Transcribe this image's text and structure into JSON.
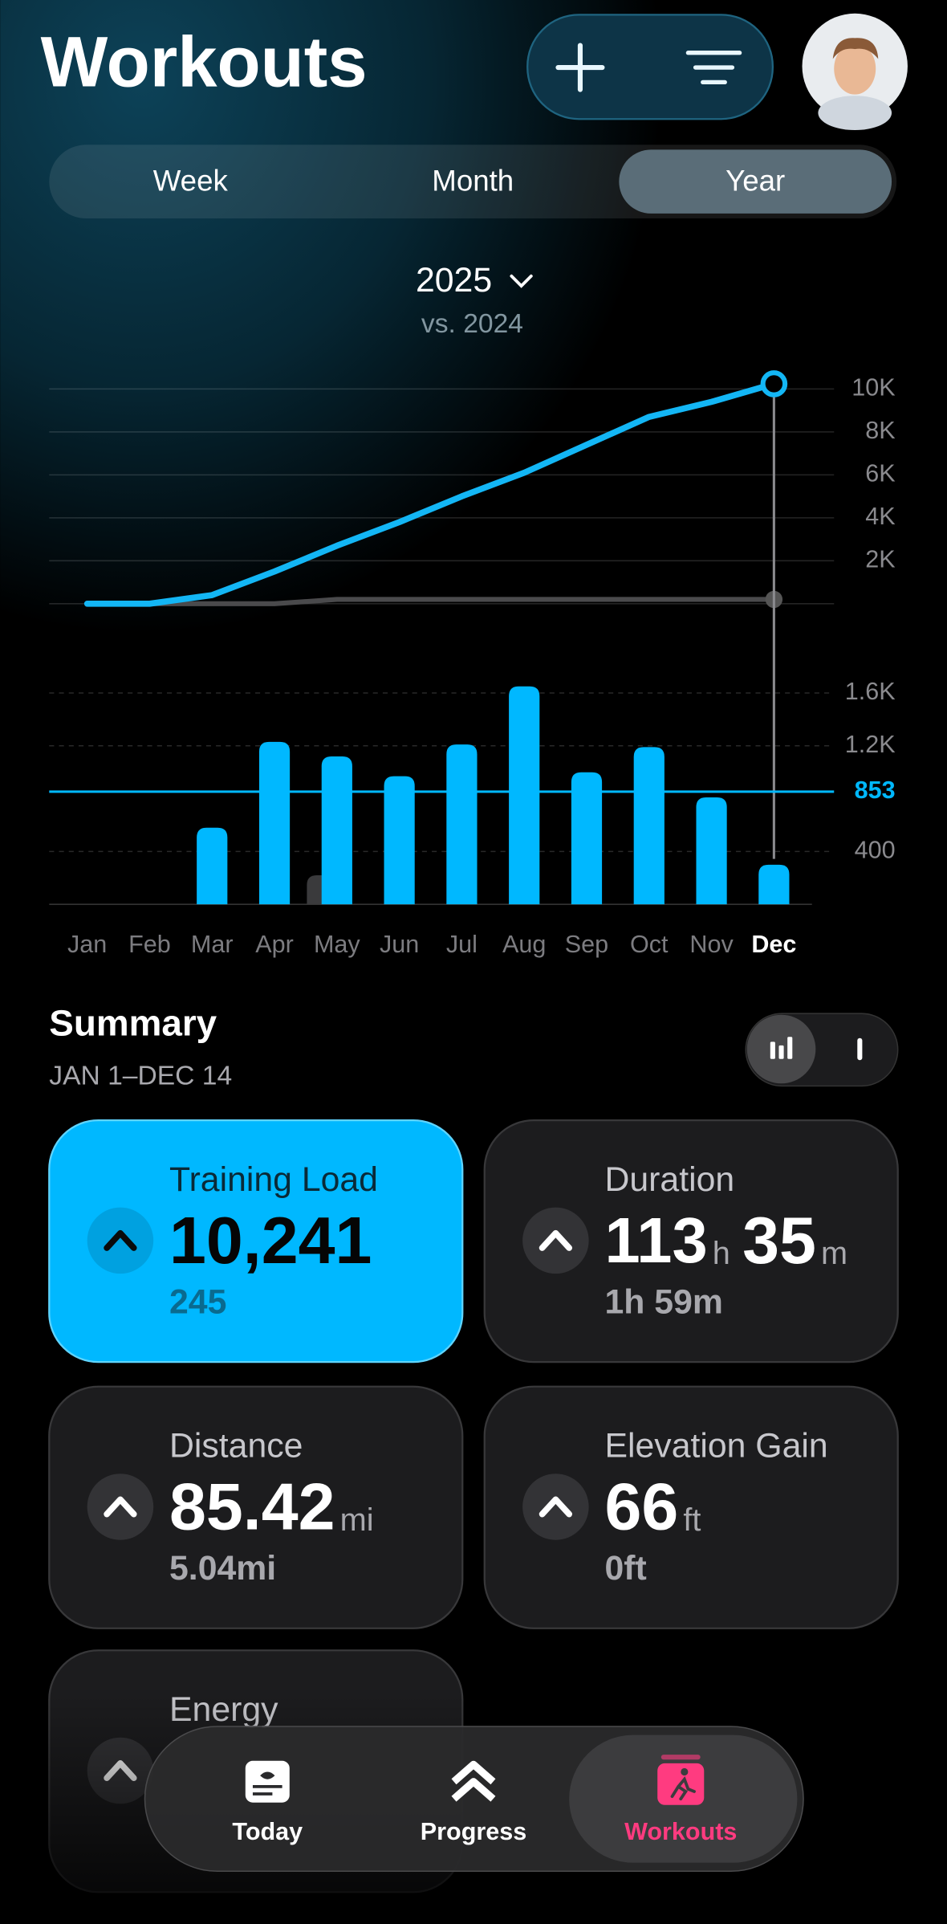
{
  "header": {
    "title": "Workouts"
  },
  "segments": {
    "options": [
      "Week",
      "Month",
      "Year"
    ],
    "selected": 2
  },
  "chart_header": {
    "year": "2025",
    "comparison": "vs. 2024"
  },
  "chart_data": [
    {
      "type": "line",
      "series": [
        {
          "color": "#13b6f5",
          "values": [
            0,
            0,
            400,
            1500,
            2700,
            3800,
            5000,
            6100,
            7400,
            8700,
            9400,
            10241
          ]
        },
        {
          "color": "#4a4a4c",
          "values": [
            0,
            0,
            0,
            0,
            200,
            200,
            200,
            200,
            200,
            200,
            200,
            200
          ]
        }
      ],
      "ylim": [
        0,
        10000
      ],
      "yticks": [
        {
          "value": 2000,
          "label": "2K"
        },
        {
          "value": 4000,
          "label": "4K"
        },
        {
          "value": 6000,
          "label": "6K"
        },
        {
          "value": 8000,
          "label": "8K"
        },
        {
          "value": 10000,
          "label": "10K"
        }
      ],
      "grid": true
    },
    {
      "type": "bar",
      "categories": [
        "Jan",
        "Feb",
        "Mar",
        "Apr",
        "May",
        "Jun",
        "Jul",
        "Aug",
        "Sep",
        "Oct",
        "Nov",
        "Dec"
      ],
      "series": [
        {
          "color": "#00b8ff",
          "values": [
            null,
            null,
            580,
            1230,
            1120,
            970,
            1210,
            1650,
            1000,
            1190,
            810,
            300
          ]
        },
        {
          "color": "#3a3a3c",
          "values": [
            null,
            null,
            null,
            null,
            220,
            null,
            null,
            null,
            null,
            null,
            null,
            null
          ]
        }
      ],
      "ylim": [
        0,
        1700
      ],
      "yticks": [
        400,
        {
          "value": 1200,
          "label": "1.2K"
        },
        {
          "value": 1600,
          "label": "1.6K"
        }
      ],
      "average": 853,
      "selected": 11,
      "grid": true
    }
  ],
  "summary": {
    "title": "Summary",
    "range": "JAN 1–DEC 14",
    "cards": [
      {
        "label": "Training Load",
        "parts": [
          {
            "number": "10,241"
          }
        ],
        "change": "245"
      },
      {
        "label": "Duration",
        "parts": [
          {
            "number": "113",
            "unit": "h"
          },
          {
            "number": "35",
            "unit": "m"
          }
        ],
        "change": "1h 59m"
      },
      {
        "label": "Distance",
        "parts": [
          {
            "number": "85.42",
            "unit": "mi"
          }
        ],
        "change": "5.04mi"
      },
      {
        "label": "Elevation Gain",
        "parts": [
          {
            "number": "66",
            "unit": "ft"
          }
        ],
        "change": "0ft"
      },
      {
        "label": "Energy"
      }
    ]
  },
  "tab_bar": {
    "items": [
      "Today",
      "Progress",
      "Workouts"
    ],
    "selected": 2
  }
}
